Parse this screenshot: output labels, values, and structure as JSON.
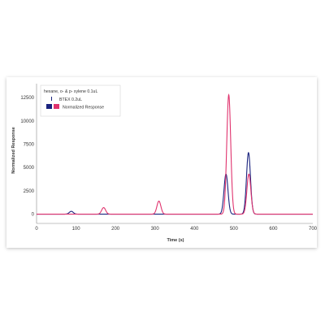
{
  "chart_data": {
    "type": "line",
    "xlabel": "Time (s)",
    "ylabel": "Normalized Response",
    "xlim": [
      0,
      700
    ],
    "ylim": [
      -1000,
      14000
    ],
    "x_ticks": [
      0,
      100,
      200,
      300,
      400,
      500,
      600,
      700
    ],
    "y_ticks": [
      0,
      2500,
      5000,
      7500,
      10000,
      12500
    ],
    "legend": {
      "title": "hexane, o- & p- xylene 0.1uL",
      "items": [
        "BTEX 0.2uL",
        "Normalized Response"
      ],
      "position": "top-left"
    },
    "series": [
      {
        "name": "BTEX 0.2uL",
        "color": "#1a237e",
        "peaks": [
          {
            "x": 88,
            "y": 300
          },
          {
            "x": 480,
            "y": 4300
          },
          {
            "x": 537,
            "y": 6600
          }
        ]
      },
      {
        "name": "Normalized Response",
        "color": "#e0336e",
        "peaks": [
          {
            "x": 170,
            "y": 700
          },
          {
            "x": 310,
            "y": 1400
          },
          {
            "x": 487,
            "y": 12800
          },
          {
            "x": 538,
            "y": 4300
          }
        ]
      }
    ],
    "grid": false
  }
}
